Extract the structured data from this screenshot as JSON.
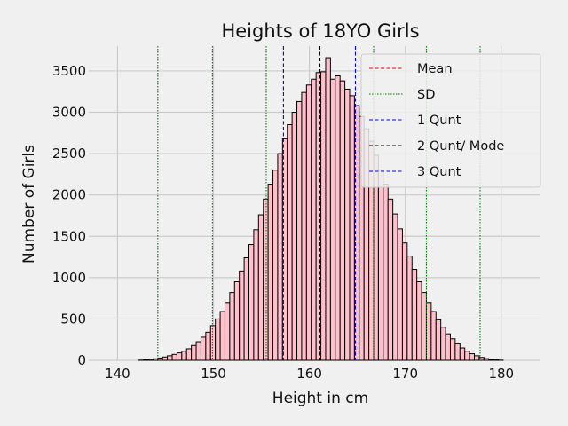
{
  "chart_data": {
    "type": "bar",
    "title": "Heights of 18YO Girls",
    "xlabel": "Height in cm",
    "ylabel": "Number of Girls",
    "xlim": [
      137,
      184
    ],
    "ylim": [
      0,
      3800
    ],
    "xticks": [
      140,
      150,
      160,
      170,
      180
    ],
    "yticks": [
      0,
      500,
      1000,
      1500,
      2000,
      2500,
      3000,
      3500
    ],
    "grid": true,
    "bar_color": "#ffc0cb",
    "bar_edge_color": "#000000",
    "bins": {
      "start": 139.7,
      "width": 0.5,
      "counts": [
        0,
        0,
        0,
        0,
        0,
        2,
        6,
        12,
        18,
        28,
        40,
        55,
        72,
        90,
        110,
        140,
        180,
        225,
        280,
        340,
        420,
        500,
        590,
        700,
        820,
        950,
        1080,
        1240,
        1400,
        1580,
        1760,
        1950,
        2130,
        2300,
        2500,
        2680,
        2850,
        3000,
        3130,
        3240,
        3330,
        3400,
        3480,
        3490,
        3660,
        3400,
        3440,
        3380,
        3280,
        3200,
        3080,
        2950,
        2800,
        2650,
        2480,
        2300,
        2130,
        1950,
        1770,
        1590,
        1420,
        1260,
        1100,
        950,
        820,
        700,
        590,
        490,
        400,
        320,
        260,
        200,
        150,
        110,
        80,
        55,
        35,
        20,
        10,
        5,
        2,
        0
      ]
    },
    "series": [
      {
        "name": "Mean",
        "x": [
          161.1
        ],
        "color": "#ff0000",
        "style": "dashed"
      },
      {
        "name": "SD",
        "x": [
          144.2,
          149.9,
          155.5,
          166.7,
          172.2,
          177.8
        ],
        "color": "#008000",
        "style": "dotted"
      },
      {
        "name": "1 Qunt",
        "x": [
          157.3
        ],
        "color": "#0000ff",
        "style": "dashed"
      },
      {
        "name": "2 Qunt/ Mode",
        "x": [
          161.1
        ],
        "color": "#000000",
        "style": "dashed"
      },
      {
        "name": "3 Qunt",
        "x": [
          164.8
        ],
        "color": "#0000ff",
        "style": "dashed"
      }
    ],
    "legend_position": "top-right"
  }
}
